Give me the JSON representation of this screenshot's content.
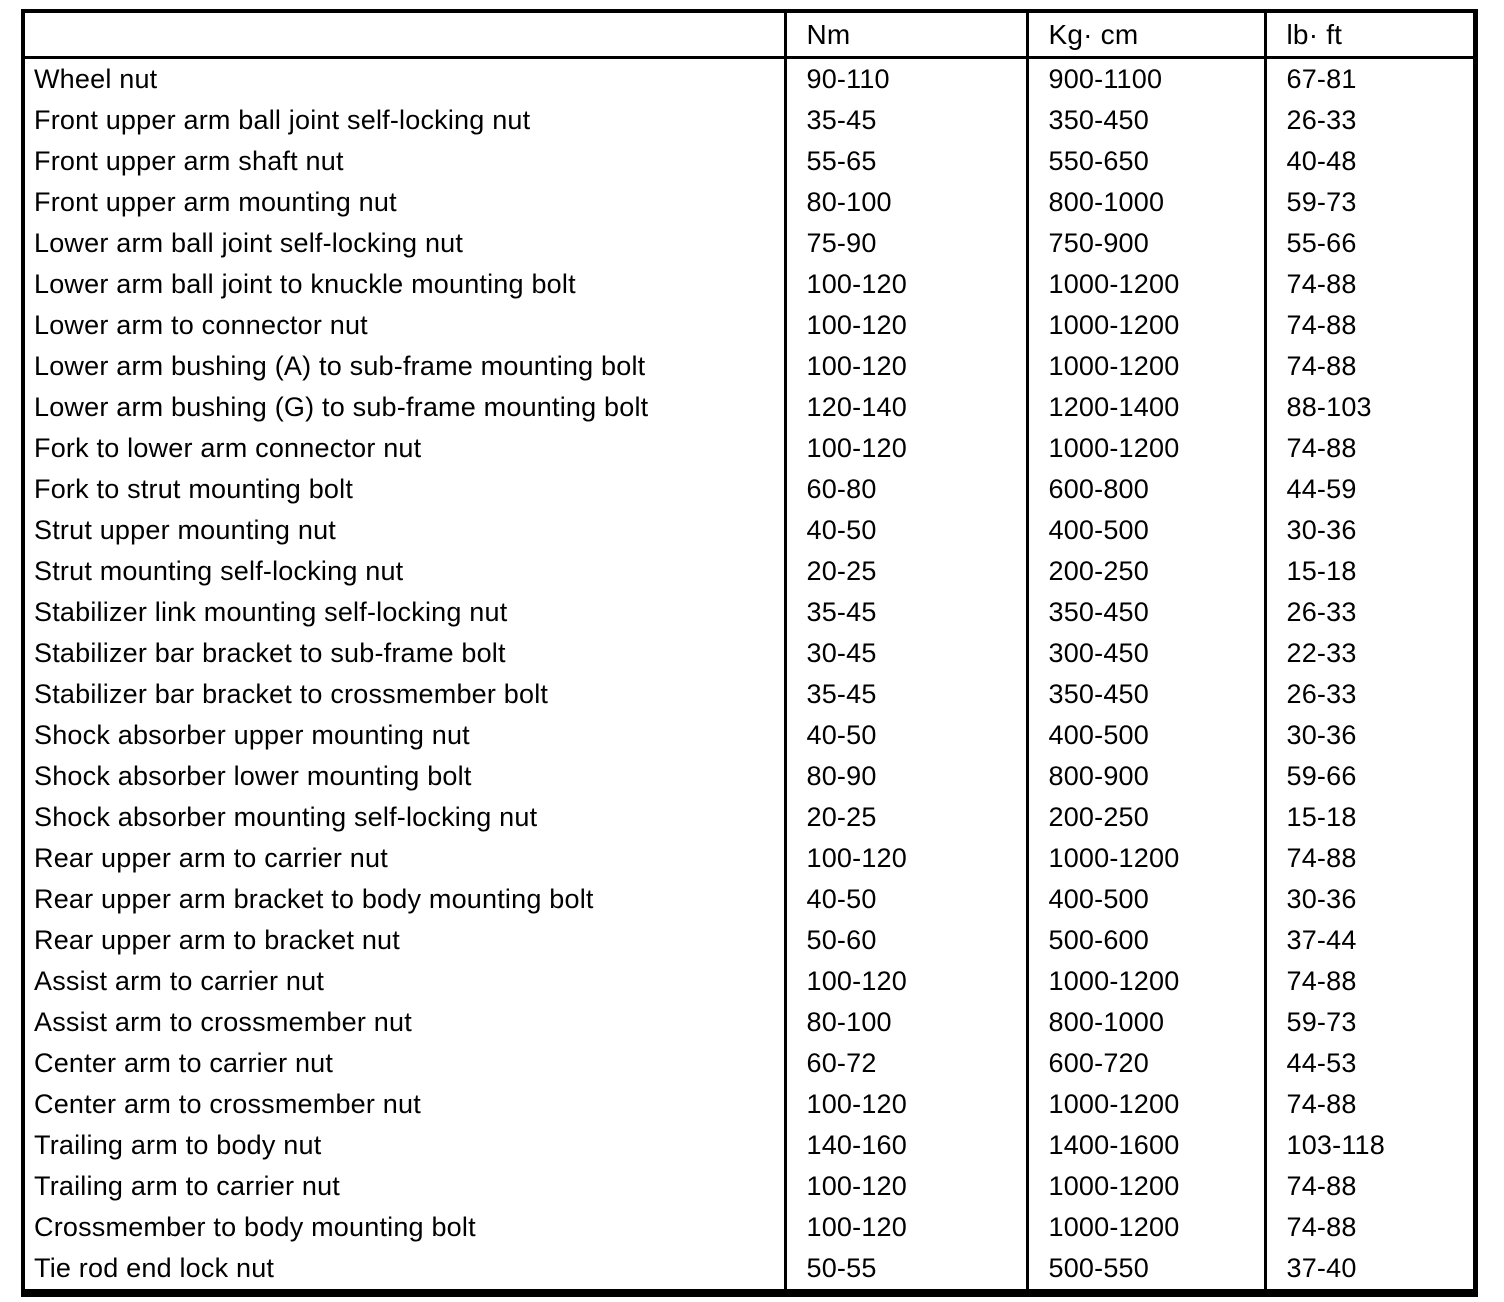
{
  "table": {
    "headers": [
      "",
      "Nm",
      "Kg· cm",
      "lb· ft"
    ],
    "rows": [
      {
        "name": "Wheel nut",
        "nm": "90-110",
        "kgcm": "900-1100",
        "lbft": "67-81"
      },
      {
        "name": "Front upper arm ball joint self-locking nut",
        "nm": "35-45",
        "kgcm": "350-450",
        "lbft": "26-33"
      },
      {
        "name": "Front upper arm shaft nut",
        "nm": "55-65",
        "kgcm": "550-650",
        "lbft": "40-48"
      },
      {
        "name": "Front upper arm mounting nut",
        "nm": "80-100",
        "kgcm": "800-1000",
        "lbft": "59-73"
      },
      {
        "name": "Lower arm ball joint self-locking nut",
        "nm": "75-90",
        "kgcm": "750-900",
        "lbft": "55-66"
      },
      {
        "name": "Lower arm ball joint to knuckle mounting bolt",
        "nm": "100-120",
        "kgcm": "1000-1200",
        "lbft": "74-88"
      },
      {
        "name": "Lower arm to connector nut",
        "nm": "100-120",
        "kgcm": "1000-1200",
        "lbft": "74-88"
      },
      {
        "name": "Lower arm bushing (A) to sub-frame mounting bolt",
        "nm": "100-120",
        "kgcm": "1000-1200",
        "lbft": "74-88"
      },
      {
        "name": "Lower arm bushing (G) to sub-frame mounting bolt",
        "nm": "120-140",
        "kgcm": "1200-1400",
        "lbft": "88-103"
      },
      {
        "name": "Fork to lower arm connector nut",
        "nm": "100-120",
        "kgcm": "1000-1200",
        "lbft": "74-88"
      },
      {
        "name": "Fork to strut mounting bolt",
        "nm": "60-80",
        "kgcm": "600-800",
        "lbft": "44-59"
      },
      {
        "name": "Strut upper mounting nut",
        "nm": "40-50",
        "kgcm": "400-500",
        "lbft": "30-36"
      },
      {
        "name": "Strut mounting self-locking nut",
        "nm": "20-25",
        "kgcm": "200-250",
        "lbft": "15-18"
      },
      {
        "name": "Stabilizer link mounting self-locking nut",
        "nm": "35-45",
        "kgcm": "350-450",
        "lbft": "26-33"
      },
      {
        "name": "Stabilizer bar bracket to sub-frame bolt",
        "nm": "30-45",
        "kgcm": "300-450",
        "lbft": "22-33"
      },
      {
        "name": "Stabilizer bar bracket to crossmember bolt",
        "nm": "35-45",
        "kgcm": "350-450",
        "lbft": "26-33"
      },
      {
        "name": "Shock absorber upper mounting nut",
        "nm": "40-50",
        "kgcm": "400-500",
        "lbft": "30-36"
      },
      {
        "name": "Shock absorber lower mounting bolt",
        "nm": "80-90",
        "kgcm": "800-900",
        "lbft": "59-66"
      },
      {
        "name": "Shock absorber mounting self-locking nut",
        "nm": "20-25",
        "kgcm": "200-250",
        "lbft": "15-18"
      },
      {
        "name": "Rear upper arm to carrier nut",
        "nm": "100-120",
        "kgcm": "1000-1200",
        "lbft": "74-88"
      },
      {
        "name": "Rear upper arm bracket to body mounting bolt",
        "nm": "40-50",
        "kgcm": "400-500",
        "lbft": "30-36"
      },
      {
        "name": "Rear upper arm to bracket nut",
        "nm": "50-60",
        "kgcm": "500-600",
        "lbft": "37-44"
      },
      {
        "name": "Assist arm to carrier nut",
        "nm": "100-120",
        "kgcm": "1000-1200",
        "lbft": "74-88"
      },
      {
        "name": "Assist arm to crossmember nut",
        "nm": "80-100",
        "kgcm": "800-1000",
        "lbft": "59-73"
      },
      {
        "name": "Center arm to carrier nut",
        "nm": "60-72",
        "kgcm": "600-720",
        "lbft": "44-53"
      },
      {
        "name": "Center arm to crossmember nut",
        "nm": "100-120",
        "kgcm": "1000-1200",
        "lbft": "74-88"
      },
      {
        "name": "Trailing arm to body nut",
        "nm": "140-160",
        "kgcm": "1400-1600",
        "lbft": "103-118"
      },
      {
        "name": "Trailing arm to carrier nut",
        "nm": "100-120",
        "kgcm": "1000-1200",
        "lbft": "74-88"
      },
      {
        "name": "Crossmember to body mounting bolt",
        "nm": "100-120",
        "kgcm": "1000-1200",
        "lbft": "74-88"
      },
      {
        "name": "Tie rod end lock nut",
        "nm": "50-55",
        "kgcm": "500-550",
        "lbft": "37-40"
      }
    ]
  }
}
